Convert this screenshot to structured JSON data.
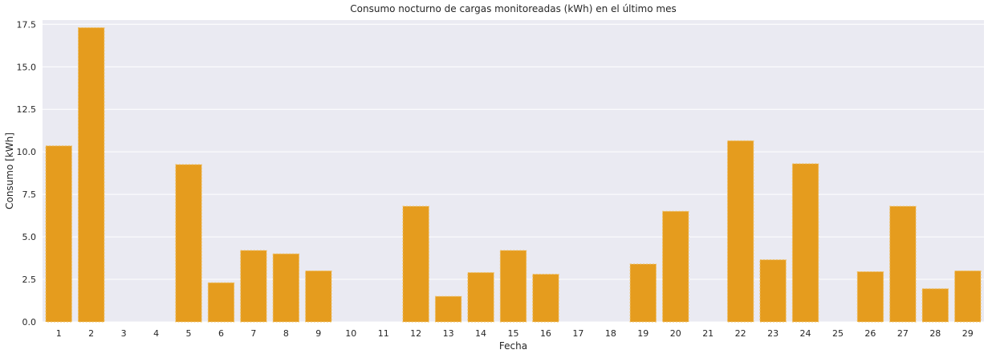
{
  "chart_data": {
    "type": "bar",
    "title": "Consumo nocturno de cargas monitoreadas (kWh) en el último mes",
    "xlabel": "Fecha",
    "ylabel": "Consumo [kWh]",
    "categories": [
      "1",
      "2",
      "3",
      "4",
      "5",
      "6",
      "7",
      "8",
      "9",
      "10",
      "11",
      "12",
      "13",
      "14",
      "15",
      "16",
      "17",
      "18",
      "19",
      "20",
      "21",
      "22",
      "23",
      "24",
      "25",
      "26",
      "27",
      "28",
      "29"
    ],
    "values": [
      10.35,
      17.3,
      0,
      0,
      9.25,
      2.3,
      4.2,
      4.0,
      3.0,
      0,
      0,
      6.8,
      1.5,
      2.9,
      4.2,
      2.8,
      0,
      0,
      3.4,
      6.5,
      0,
      10.65,
      3.65,
      9.3,
      0,
      2.95,
      6.8,
      1.95,
      3.0
    ],
    "ylim": [
      0,
      17.75
    ],
    "yticks": [
      0.0,
      2.5,
      5.0,
      7.5,
      10.0,
      12.5,
      15.0,
      17.5
    ],
    "ytick_labels": [
      "0.0",
      "2.5",
      "5.0",
      "7.5",
      "10.0",
      "12.5",
      "15.0",
      "17.5"
    ],
    "grid": true,
    "colors": {
      "bar": "#e59c1e",
      "bar_edge": "#f0c060",
      "plot_background": "#eaeaf2",
      "grid": "#ffffff"
    }
  }
}
